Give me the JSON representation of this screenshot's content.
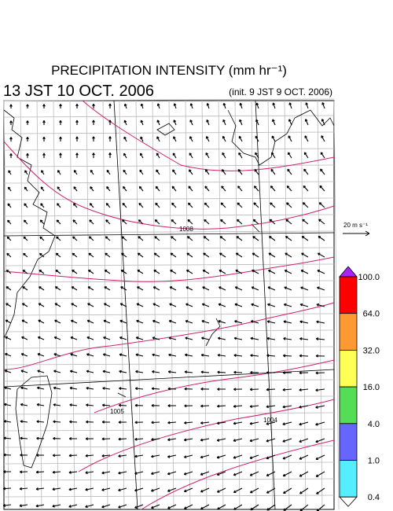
{
  "map": {
    "title": "PRECIPITATION INTENSITY (mm hr⁻¹)",
    "valid_time": "13 JST 10 OCT. 2006",
    "init_time": "(init. 9 JST 9 OCT. 2006)",
    "vector_scale_label": "20 m s⁻¹",
    "contour_labels": [
      "1008",
      "1005",
      "1004"
    ],
    "colorbar": {
      "levels": [
        {
          "value": 100,
          "label": "100.0"
        },
        {
          "value": 64,
          "label": "64.0"
        },
        {
          "value": 32,
          "label": "32.0"
        },
        {
          "value": 16,
          "label": "16.0"
        },
        {
          "value": 4,
          "label": "4.0"
        },
        {
          "value": 1,
          "label": "1.0"
        },
        {
          "value": 0.4,
          "label": "0.4"
        }
      ],
      "colors": [
        "#ff0000",
        "#ff9933",
        "#ffff55",
        "#55dd55",
        "#6666ff",
        "#55eeff"
      ],
      "over_color": "#aa22ff",
      "under_color": "#ffffff"
    }
  }
}
